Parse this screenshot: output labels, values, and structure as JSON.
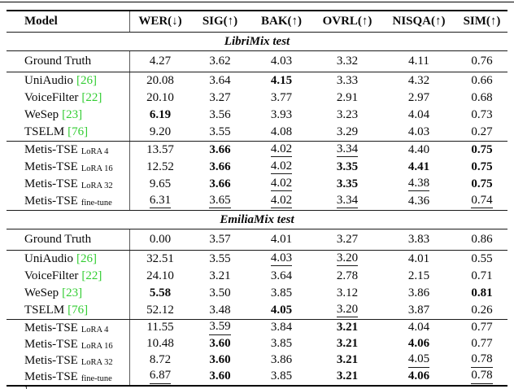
{
  "colors": {
    "citation_green": "#32CD32",
    "rule_black": "#000000",
    "text": "#0a0a0a"
  },
  "table": {
    "header": {
      "model": "Model",
      "metrics": [
        "WER(↓)",
        "SIG(↑)",
        "BAK(↑)",
        "OVRL(↑)",
        "NISQA(↑)",
        "SIM(↑)"
      ]
    },
    "sections": [
      {
        "title": "LibriMix test",
        "groups": [
          {
            "rows": [
              {
                "model": {
                  "label": "Ground Truth"
                },
                "cells": [
                  {
                    "v": "4.27"
                  },
                  {
                    "v": "3.62"
                  },
                  {
                    "v": "4.03"
                  },
                  {
                    "v": "3.32"
                  },
                  {
                    "v": "4.11"
                  },
                  {
                    "v": "0.76"
                  }
                ]
              }
            ]
          },
          {
            "rows": [
              {
                "model": {
                  "label": "UniAudio",
                  "cite": "[26]"
                },
                "cells": [
                  {
                    "v": "20.08"
                  },
                  {
                    "v": "3.64"
                  },
                  {
                    "v": "4.15",
                    "s": "b"
                  },
                  {
                    "v": "3.33"
                  },
                  {
                    "v": "4.32"
                  },
                  {
                    "v": "0.66"
                  }
                ]
              },
              {
                "model": {
                  "label": "VoiceFilter",
                  "cite": "[22]"
                },
                "cells": [
                  {
                    "v": "20.10"
                  },
                  {
                    "v": "3.27"
                  },
                  {
                    "v": "3.77"
                  },
                  {
                    "v": "2.91"
                  },
                  {
                    "v": "2.97"
                  },
                  {
                    "v": "0.68"
                  }
                ]
              },
              {
                "model": {
                  "label": "WeSep",
                  "cite": "[23]"
                },
                "cells": [
                  {
                    "v": "6.19",
                    "s": "b"
                  },
                  {
                    "v": "3.56"
                  },
                  {
                    "v": "3.93"
                  },
                  {
                    "v": "3.23"
                  },
                  {
                    "v": "4.04"
                  },
                  {
                    "v": "0.73"
                  }
                ]
              },
              {
                "model": {
                  "label": "TSELM",
                  "cite": "[76]"
                },
                "cells": [
                  {
                    "v": "9.20"
                  },
                  {
                    "v": "3.55"
                  },
                  {
                    "v": "4.08"
                  },
                  {
                    "v": "3.29"
                  },
                  {
                    "v": "4.03"
                  },
                  {
                    "v": "0.27"
                  }
                ]
              }
            ]
          },
          {
            "rows": [
              {
                "model": {
                  "label": "Metis-TSE",
                  "sub": "LoRA 4"
                },
                "cells": [
                  {
                    "v": "13.57"
                  },
                  {
                    "v": "3.66",
                    "s": "b"
                  },
                  {
                    "v": "4.02",
                    "s": "u"
                  },
                  {
                    "v": "3.34",
                    "s": "u"
                  },
                  {
                    "v": "4.40"
                  },
                  {
                    "v": "0.75",
                    "s": "b"
                  }
                ]
              },
              {
                "model": {
                  "label": "Metis-TSE",
                  "sub": "LoRA 16"
                },
                "cells": [
                  {
                    "v": "12.52"
                  },
                  {
                    "v": "3.66",
                    "s": "b"
                  },
                  {
                    "v": "4.02",
                    "s": "u"
                  },
                  {
                    "v": "3.35",
                    "s": "b"
                  },
                  {
                    "v": "4.41",
                    "s": "b"
                  },
                  {
                    "v": "0.75",
                    "s": "b"
                  }
                ]
              },
              {
                "model": {
                  "label": "Metis-TSE",
                  "sub": "LoRA 32"
                },
                "cells": [
                  {
                    "v": "9.65"
                  },
                  {
                    "v": "3.66",
                    "s": "b"
                  },
                  {
                    "v": "4.02",
                    "s": "u"
                  },
                  {
                    "v": "3.35",
                    "s": "b"
                  },
                  {
                    "v": "4.38",
                    "s": "u"
                  },
                  {
                    "v": "0.75",
                    "s": "b"
                  }
                ]
              },
              {
                "model": {
                  "label": "Metis-TSE",
                  "sub": "fine-tune"
                },
                "cells": [
                  {
                    "v": "6.31",
                    "s": "u"
                  },
                  {
                    "v": "3.65",
                    "s": "u"
                  },
                  {
                    "v": "4.02",
                    "s": "u"
                  },
                  {
                    "v": "3.34",
                    "s": "u"
                  },
                  {
                    "v": "4.36"
                  },
                  {
                    "v": "0.74",
                    "s": "u"
                  }
                ]
              }
            ]
          }
        ]
      },
      {
        "title": "EmiliaMix test",
        "groups": [
          {
            "rows": [
              {
                "model": {
                  "label": "Ground Truth"
                },
                "cells": [
                  {
                    "v": "0.00"
                  },
                  {
                    "v": "3.57"
                  },
                  {
                    "v": "4.01"
                  },
                  {
                    "v": "3.27"
                  },
                  {
                    "v": "3.83"
                  },
                  {
                    "v": "0.86"
                  }
                ]
              }
            ]
          },
          {
            "rows": [
              {
                "model": {
                  "label": "UniAudio",
                  "cite": "[26]"
                },
                "cells": [
                  {
                    "v": "32.51"
                  },
                  {
                    "v": "3.55"
                  },
                  {
                    "v": "4.03",
                    "s": "u"
                  },
                  {
                    "v": "3.20",
                    "s": "u"
                  },
                  {
                    "v": "4.01"
                  },
                  {
                    "v": "0.55"
                  }
                ]
              },
              {
                "model": {
                  "label": "VoiceFilter",
                  "cite": "[22]"
                },
                "cells": [
                  {
                    "v": "24.10"
                  },
                  {
                    "v": "3.21"
                  },
                  {
                    "v": "3.64"
                  },
                  {
                    "v": "2.78"
                  },
                  {
                    "v": "2.15"
                  },
                  {
                    "v": "0.71"
                  }
                ]
              },
              {
                "model": {
                  "label": "WeSep",
                  "cite": "[23]"
                },
                "cells": [
                  {
                    "v": "5.58",
                    "s": "b"
                  },
                  {
                    "v": "3.50"
                  },
                  {
                    "v": "3.85"
                  },
                  {
                    "v": "3.12"
                  },
                  {
                    "v": "3.86"
                  },
                  {
                    "v": "0.81",
                    "s": "b"
                  }
                ]
              },
              {
                "model": {
                  "label": "TSELM",
                  "cite": "[76]"
                },
                "cells": [
                  {
                    "v": "52.12"
                  },
                  {
                    "v": "3.48"
                  },
                  {
                    "v": "4.05",
                    "s": "b"
                  },
                  {
                    "v": "3.20",
                    "s": "u"
                  },
                  {
                    "v": "3.87"
                  },
                  {
                    "v": "0.26"
                  }
                ]
              }
            ]
          },
          {
            "rows": [
              {
                "model": {
                  "label": "Metis-TSE",
                  "sub": "LoRA 4"
                },
                "cells": [
                  {
                    "v": "11.55"
                  },
                  {
                    "v": "3.59",
                    "s": "u"
                  },
                  {
                    "v": "3.84"
                  },
                  {
                    "v": "3.21",
                    "s": "b"
                  },
                  {
                    "v": "4.04"
                  },
                  {
                    "v": "0.77"
                  }
                ]
              },
              {
                "model": {
                  "label": "Metis-TSE",
                  "sub": "LoRA 16"
                },
                "cells": [
                  {
                    "v": "10.48"
                  },
                  {
                    "v": "3.60",
                    "s": "b"
                  },
                  {
                    "v": "3.85"
                  },
                  {
                    "v": "3.21",
                    "s": "b"
                  },
                  {
                    "v": "4.06",
                    "s": "b"
                  },
                  {
                    "v": "0.77"
                  }
                ]
              },
              {
                "model": {
                  "label": "Metis-TSE",
                  "sub": "LoRA 32"
                },
                "cells": [
                  {
                    "v": "8.72"
                  },
                  {
                    "v": "3.60",
                    "s": "b"
                  },
                  {
                    "v": "3.86"
                  },
                  {
                    "v": "3.21",
                    "s": "b"
                  },
                  {
                    "v": "4.05",
                    "s": "u"
                  },
                  {
                    "v": "0.78",
                    "s": "u"
                  }
                ]
              },
              {
                "model": {
                  "label": "Metis-TSE",
                  "sub": "fine-tune"
                },
                "cells": [
                  {
                    "v": "6.87",
                    "s": "u"
                  },
                  {
                    "v": "3.60",
                    "s": "b"
                  },
                  {
                    "v": "3.85"
                  },
                  {
                    "v": "3.21",
                    "s": "b"
                  },
                  {
                    "v": "4.06",
                    "s": "b"
                  },
                  {
                    "v": "0.78",
                    "s": "u"
                  }
                ]
              }
            ]
          }
        ]
      }
    ],
    "footnote_marker": "1"
  }
}
